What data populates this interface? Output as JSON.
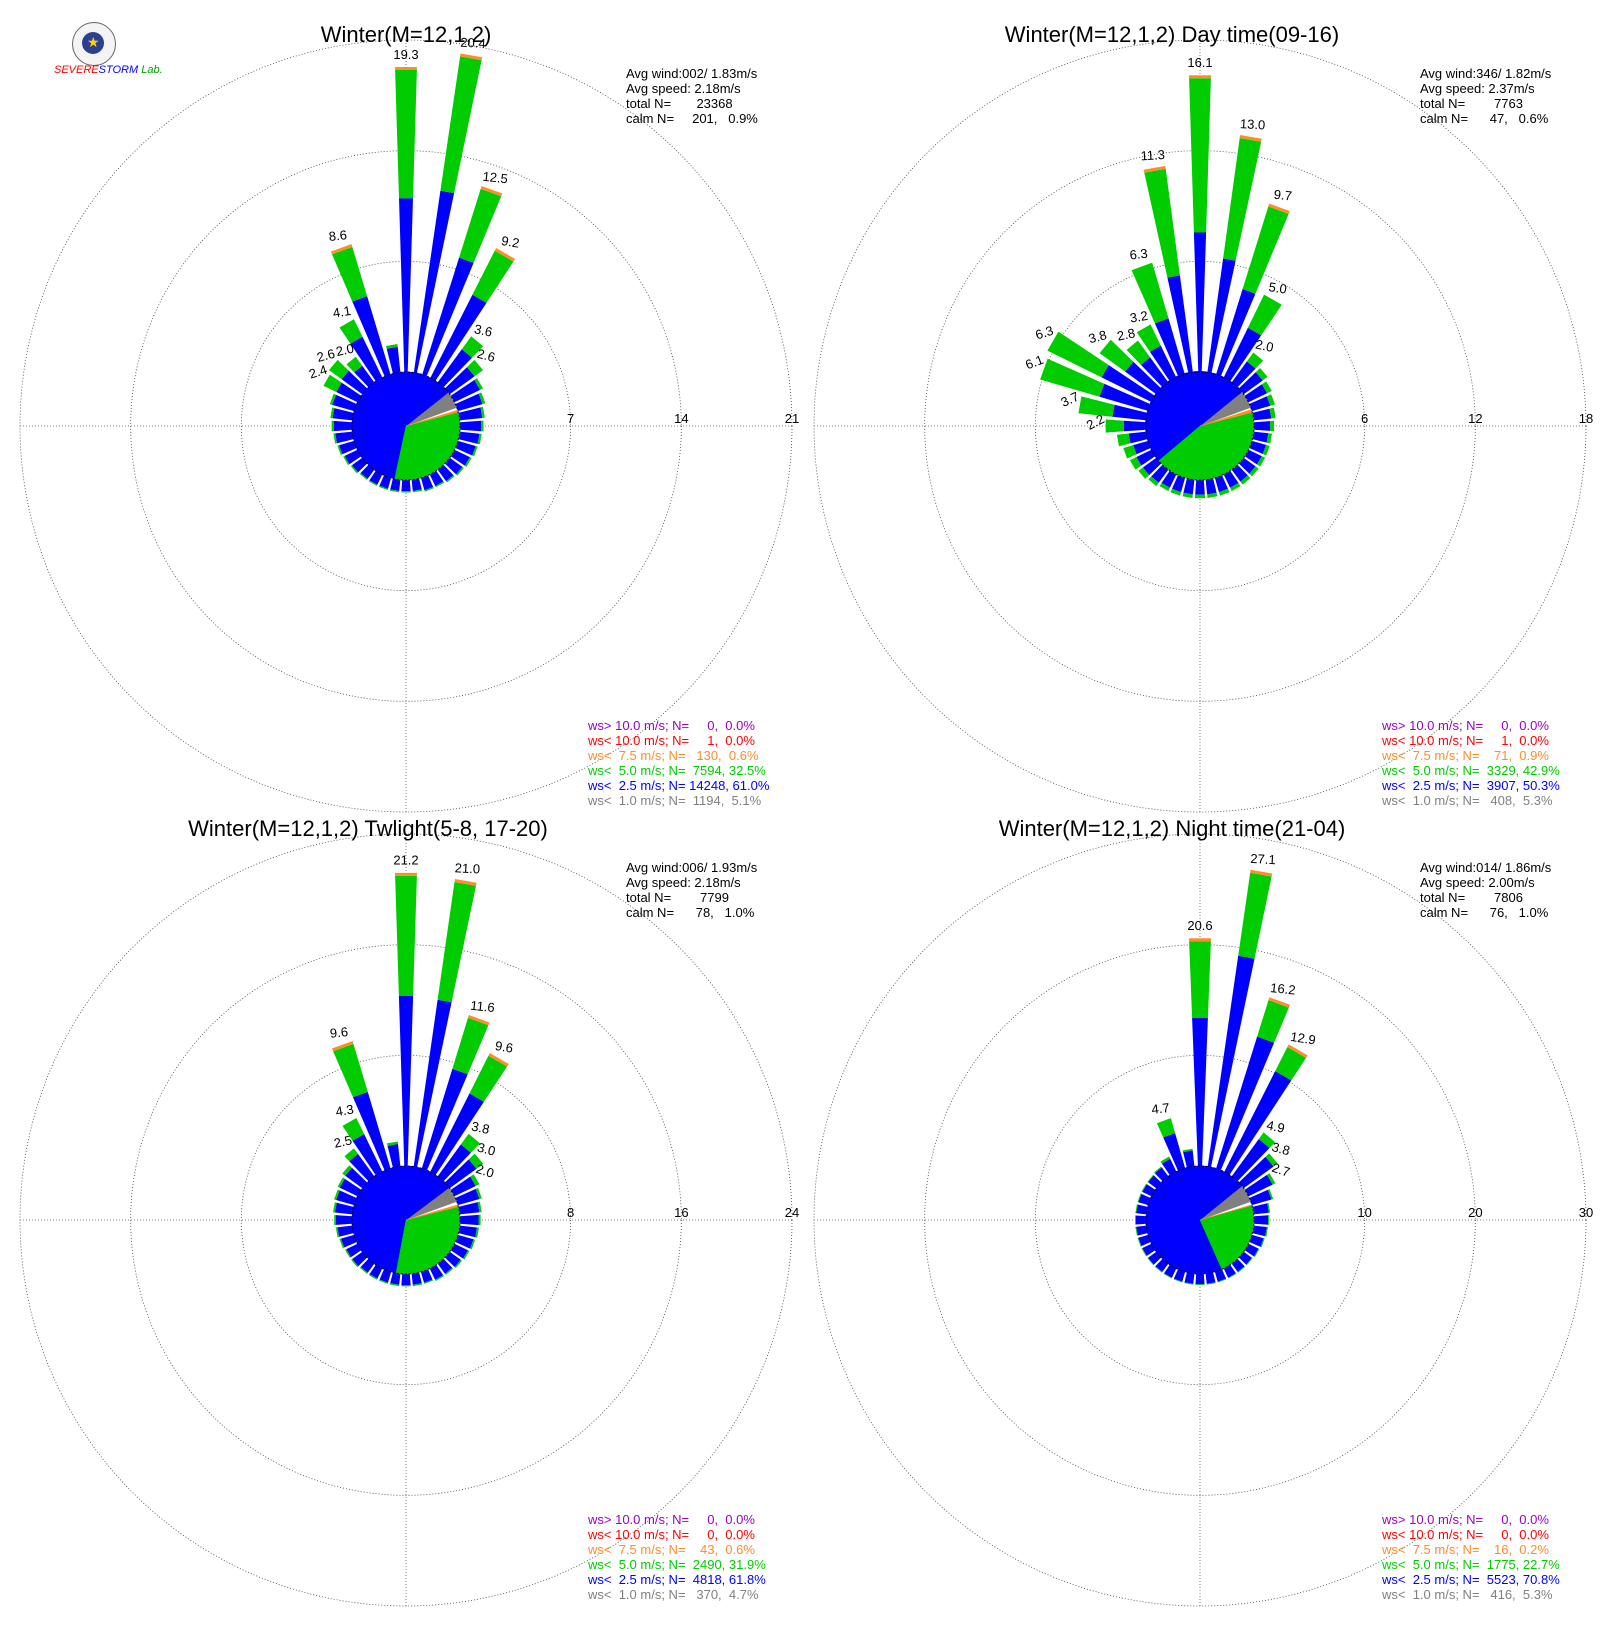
{
  "logo": {
    "text1": "SEVERE",
    "text2": "STORM",
    "text3": "Lab."
  },
  "colors": {
    "gt10": "#9900cc",
    "lt10": "#ff0000",
    "lt7_5": "#ff8c2a",
    "lt5": "#00cc00",
    "lt2_5": "#0000ff",
    "lt1": "#808080"
  },
  "chart_data": [
    {
      "type": "windrose",
      "title": "Winter(M=12,1,2)",
      "ring_labels": [
        "7",
        "14",
        "21"
      ],
      "ring_values": [
        7,
        14,
        21
      ],
      "stats": [
        "Avg wind:002/ 1.83m/s",
        "Avg speed: 2.18m/s",
        "total N=       23368",
        "calm N=     201,   0.9%"
      ],
      "legend": [
        {
          "key": "gt10",
          "text": "ws> 10.0 m/s; N=     0,  0.0%"
        },
        {
          "key": "lt10",
          "text": "ws< 10.0 m/s; N=     1,  0.0%"
        },
        {
          "key": "lt7_5",
          "text": "ws<  7.5 m/s; N=   130,  0.6%"
        },
        {
          "key": "lt5",
          "text": "ws<  5.0 m/s; N=  7594, 32.5%"
        },
        {
          "key": "lt2_5",
          "text": "ws<  2.5 m/s; N= 14248, 61.0%"
        },
        {
          "key": "lt1",
          "text": "ws<  1.0 m/s; N=  1194,  5.1%"
        }
      ],
      "bar_labels": [
        {
          "dir": 0,
          "text": "19.3"
        },
        {
          "dir": 10,
          "text": "20.4"
        },
        {
          "dir": 20,
          "text": "12.5"
        },
        {
          "dir": 30,
          "text": "9.2"
        },
        {
          "dir": 40,
          "text": "3.6"
        },
        {
          "dir": 50,
          "text": "2.6"
        },
        {
          "dir": 340,
          "text": "8.6"
        },
        {
          "dir": 330,
          "text": "4.1"
        },
        {
          "dir": 320,
          "text": "2.0"
        },
        {
          "dir": 310,
          "text": "2.6"
        },
        {
          "dir": 300,
          "text": "2.4"
        }
      ],
      "directions": [
        0,
        10,
        20,
        30,
        40,
        50,
        60,
        70,
        80,
        90,
        100,
        110,
        120,
        130,
        140,
        150,
        160,
        170,
        180,
        190,
        200,
        210,
        220,
        230,
        240,
        250,
        260,
        270,
        280,
        290,
        300,
        310,
        320,
        330,
        340,
        350
      ],
      "totals": [
        19.3,
        20.4,
        12.5,
        9.2,
        3.6,
        2.6,
        2.0,
        1.8,
        1.6,
        1.5,
        1.4,
        1.3,
        1.2,
        1.1,
        1.0,
        0.9,
        0.9,
        0.8,
        0.8,
        0.8,
        0.8,
        0.8,
        0.8,
        0.9,
        1.0,
        1.1,
        1.2,
        1.3,
        1.4,
        1.6,
        2.4,
        2.6,
        2.0,
        4.1,
        8.6,
        1.8
      ],
      "blue_fraction": [
        0.57,
        0.57,
        0.62,
        0.64,
        0.72,
        0.75,
        0.9,
        0.9,
        0.9,
        0.9,
        0.9,
        0.9,
        0.9,
        0.9,
        0.9,
        0.9,
        0.9,
        0.9,
        0.9,
        0.9,
        0.9,
        0.9,
        0.9,
        0.9,
        0.9,
        0.9,
        0.9,
        0.9,
        0.9,
        0.9,
        0.62,
        0.62,
        0.65,
        0.7,
        0.6,
        0.9
      ],
      "pie": {
        "lt1": 5.1,
        "lt2_5": 61.0,
        "lt5": 32.5,
        "lt7_5": 0.6,
        "lt10": 0.0,
        "gt10": 0.0
      }
    },
    {
      "type": "windrose",
      "title": "Winter(M=12,1,2) Day time(09-16)",
      "ring_labels": [
        "6",
        "12",
        "18"
      ],
      "ring_values": [
        6,
        12,
        18
      ],
      "stats": [
        "Avg wind:346/ 1.82m/s",
        "Avg speed: 2.37m/s",
        "total N=        7763",
        "calm N=      47,   0.6%"
      ],
      "legend": [
        {
          "key": "gt10",
          "text": "ws> 10.0 m/s; N=     0,  0.0%"
        },
        {
          "key": "lt10",
          "text": "ws< 10.0 m/s; N=     1,  0.0%"
        },
        {
          "key": "lt7_5",
          "text": "ws<  7.5 m/s; N=    71,  0.9%"
        },
        {
          "key": "lt5",
          "text": "ws<  5.0 m/s; N=  3329, 42.9%"
        },
        {
          "key": "lt2_5",
          "text": "ws<  2.5 m/s; N=  3907, 50.3%"
        },
        {
          "key": "lt1",
          "text": "ws<  1.0 m/s; N=   408,  5.3%"
        }
      ],
      "bar_labels": [
        {
          "dir": 0,
          "text": "16.1"
        },
        {
          "dir": 10,
          "text": "13.0"
        },
        {
          "dir": 20,
          "text": "9.7"
        },
        {
          "dir": 30,
          "text": "5.0"
        },
        {
          "dir": 40,
          "text": "2.0"
        },
        {
          "dir": 350,
          "text": "11.3"
        },
        {
          "dir": 340,
          "text": "6.3"
        },
        {
          "dir": 330,
          "text": "3.2"
        },
        {
          "dir": 320,
          "text": "2.8"
        },
        {
          "dir": 310,
          "text": "3.8"
        },
        {
          "dir": 300,
          "text": "6.3"
        },
        {
          "dir": 290,
          "text": "6.1"
        },
        {
          "dir": 280,
          "text": "3.7"
        },
        {
          "dir": 270,
          "text": "2.2"
        }
      ],
      "directions": [
        0,
        10,
        20,
        30,
        40,
        50,
        60,
        70,
        80,
        90,
        100,
        110,
        120,
        130,
        140,
        150,
        160,
        170,
        180,
        190,
        200,
        210,
        220,
        230,
        240,
        250,
        260,
        270,
        280,
        290,
        300,
        310,
        320,
        330,
        340,
        350
      ],
      "totals": [
        16.1,
        13.0,
        9.7,
        5.0,
        2.0,
        1.6,
        1.4,
        1.3,
        1.2,
        1.1,
        1.0,
        1.0,
        1.0,
        1.0,
        1.0,
        1.0,
        1.0,
        1.0,
        1.0,
        1.0,
        1.0,
        1.0,
        1.1,
        1.2,
        1.3,
        1.4,
        1.6,
        2.2,
        3.7,
        6.1,
        6.3,
        3.8,
        2.8,
        3.2,
        6.3,
        11.3
      ],
      "blue_fraction": [
        0.47,
        0.48,
        0.5,
        0.6,
        0.7,
        0.8,
        0.8,
        0.8,
        0.8,
        0.8,
        0.8,
        0.8,
        0.8,
        0.8,
        0.8,
        0.8,
        0.8,
        0.8,
        0.8,
        0.8,
        0.8,
        0.8,
        0.8,
        0.75,
        0.7,
        0.6,
        0.6,
        0.55,
        0.5,
        0.45,
        0.48,
        0.55,
        0.6,
        0.6,
        0.5,
        0.47
      ],
      "pie": {
        "lt1": 5.3,
        "lt2_5": 50.3,
        "lt5": 42.9,
        "lt7_5": 0.9,
        "lt10": 0.0,
        "gt10": 0.0
      }
    },
    {
      "type": "windrose",
      "title": "Winter(M=12,1,2) Twlight(5-8, 17-20)",
      "ring_labels": [
        "8",
        "16",
        "24"
      ],
      "ring_values": [
        8,
        16,
        24
      ],
      "stats": [
        "Avg wind:006/ 1.93m/s",
        "Avg speed: 2.18m/s",
        "total N=        7799",
        "calm N=      78,   1.0%"
      ],
      "legend": [
        {
          "key": "gt10",
          "text": "ws> 10.0 m/s; N=     0,  0.0%"
        },
        {
          "key": "lt10",
          "text": "ws< 10.0 m/s; N=     0,  0.0%"
        },
        {
          "key": "lt7_5",
          "text": "ws<  7.5 m/s; N=    43,  0.6%"
        },
        {
          "key": "lt5",
          "text": "ws<  5.0 m/s; N=  2490, 31.9%"
        },
        {
          "key": "lt2_5",
          "text": "ws<  2.5 m/s; N=  4818, 61.8%"
        },
        {
          "key": "lt1",
          "text": "ws<  1.0 m/s; N=   370,  4.7%"
        }
      ],
      "bar_labels": [
        {
          "dir": 0,
          "text": "21.2"
        },
        {
          "dir": 10,
          "text": "21.0"
        },
        {
          "dir": 20,
          "text": "11.6"
        },
        {
          "dir": 30,
          "text": "9.6"
        },
        {
          "dir": 40,
          "text": "3.8"
        },
        {
          "dir": 50,
          "text": "3.0"
        },
        {
          "dir": 60,
          "text": "2.0"
        },
        {
          "dir": 340,
          "text": "9.6"
        },
        {
          "dir": 330,
          "text": "4.3"
        },
        {
          "dir": 320,
          "text": "2.5"
        }
      ],
      "directions": [
        0,
        10,
        20,
        30,
        40,
        50,
        60,
        70,
        80,
        90,
        100,
        110,
        120,
        130,
        140,
        150,
        160,
        170,
        180,
        190,
        200,
        210,
        220,
        230,
        240,
        250,
        260,
        270,
        280,
        290,
        300,
        310,
        320,
        330,
        340,
        350
      ],
      "totals": [
        21.2,
        21.0,
        11.6,
        9.6,
        3.8,
        3.0,
        2.0,
        1.8,
        1.6,
        1.5,
        1.4,
        1.3,
        1.2,
        1.1,
        1.0,
        1.0,
        0.9,
        0.9,
        0.9,
        0.9,
        0.9,
        0.9,
        0.9,
        1.0,
        1.0,
        1.1,
        1.2,
        1.3,
        1.4,
        1.5,
        1.6,
        1.8,
        2.5,
        4.3,
        9.6,
        1.8
      ],
      "blue_fraction": [
        0.58,
        0.58,
        0.65,
        0.66,
        0.75,
        0.8,
        0.85,
        0.9,
        0.9,
        0.9,
        0.9,
        0.9,
        0.9,
        0.9,
        0.9,
        0.9,
        0.9,
        0.9,
        0.9,
        0.9,
        0.9,
        0.9,
        0.9,
        0.9,
        0.9,
        0.9,
        0.9,
        0.9,
        0.9,
        0.9,
        0.9,
        0.85,
        0.8,
        0.7,
        0.6,
        0.9
      ],
      "pie": {
        "lt1": 4.7,
        "lt2_5": 61.8,
        "lt5": 31.9,
        "lt7_5": 0.6,
        "lt10": 0.0,
        "gt10": 0.0
      }
    },
    {
      "type": "windrose",
      "title": "Winter(M=12,1,2) Night time(21-04)",
      "ring_labels": [
        "10",
        "20",
        "30"
      ],
      "ring_values": [
        10,
        20,
        30
      ],
      "stats": [
        "Avg wind:014/ 1.86m/s",
        "Avg speed: 2.00m/s",
        "total N=        7806",
        "calm N=      76,   1.0%"
      ],
      "legend": [
        {
          "key": "gt10",
          "text": "ws> 10.0 m/s; N=     0,  0.0%"
        },
        {
          "key": "lt10",
          "text": "ws< 10.0 m/s; N=     0,  0.0%"
        },
        {
          "key": "lt7_5",
          "text": "ws<  7.5 m/s; N=    16,  0.2%"
        },
        {
          "key": "lt5",
          "text": "ws<  5.0 m/s; N=  1775, 22.7%"
        },
        {
          "key": "lt2_5",
          "text": "ws<  2.5 m/s; N=  5523, 70.8%"
        },
        {
          "key": "lt1",
          "text": "ws<  1.0 m/s; N=   416,  5.3%"
        }
      ],
      "bar_labels": [
        {
          "dir": 0,
          "text": "20.6"
        },
        {
          "dir": 10,
          "text": "27.1"
        },
        {
          "dir": 20,
          "text": "16.2"
        },
        {
          "dir": 30,
          "text": "12.9"
        },
        {
          "dir": 40,
          "text": "4.9"
        },
        {
          "dir": 50,
          "text": "3.8"
        },
        {
          "dir": 60,
          "text": "2.7"
        },
        {
          "dir": 340,
          "text": "4.7"
        }
      ],
      "directions": [
        0,
        10,
        20,
        30,
        40,
        50,
        60,
        70,
        80,
        90,
        100,
        110,
        120,
        130,
        140,
        150,
        160,
        170,
        180,
        190,
        200,
        210,
        220,
        230,
        240,
        250,
        260,
        270,
        280,
        290,
        300,
        310,
        320,
        330,
        340,
        350
      ],
      "totals": [
        20.6,
        27.1,
        16.2,
        12.9,
        4.9,
        3.8,
        2.7,
        2.0,
        1.5,
        1.4,
        1.3,
        1.2,
        1.1,
        1.0,
        1.0,
        1.0,
        1.0,
        1.0,
        1.0,
        1.0,
        1.0,
        1.0,
        1.0,
        1.0,
        1.0,
        1.0,
        1.0,
        1.0,
        1.0,
        1.0,
        1.0,
        1.0,
        1.1,
        1.5,
        4.7,
        1.6
      ],
      "blue_fraction": [
        0.65,
        0.71,
        0.77,
        0.79,
        0.85,
        0.88,
        0.9,
        0.92,
        0.92,
        0.92,
        0.92,
        0.92,
        0.92,
        0.92,
        0.92,
        0.92,
        0.92,
        0.92,
        0.92,
        0.92,
        0.92,
        0.92,
        0.92,
        0.92,
        0.92,
        0.92,
        0.92,
        0.92,
        0.92,
        0.92,
        0.92,
        0.92,
        0.9,
        0.85,
        0.7,
        0.9
      ],
      "pie": {
        "lt1": 5.3,
        "lt2_5": 70.8,
        "lt5": 22.7,
        "lt7_5": 0.2,
        "lt10": 0.0,
        "gt10": 0.0
      }
    }
  ]
}
